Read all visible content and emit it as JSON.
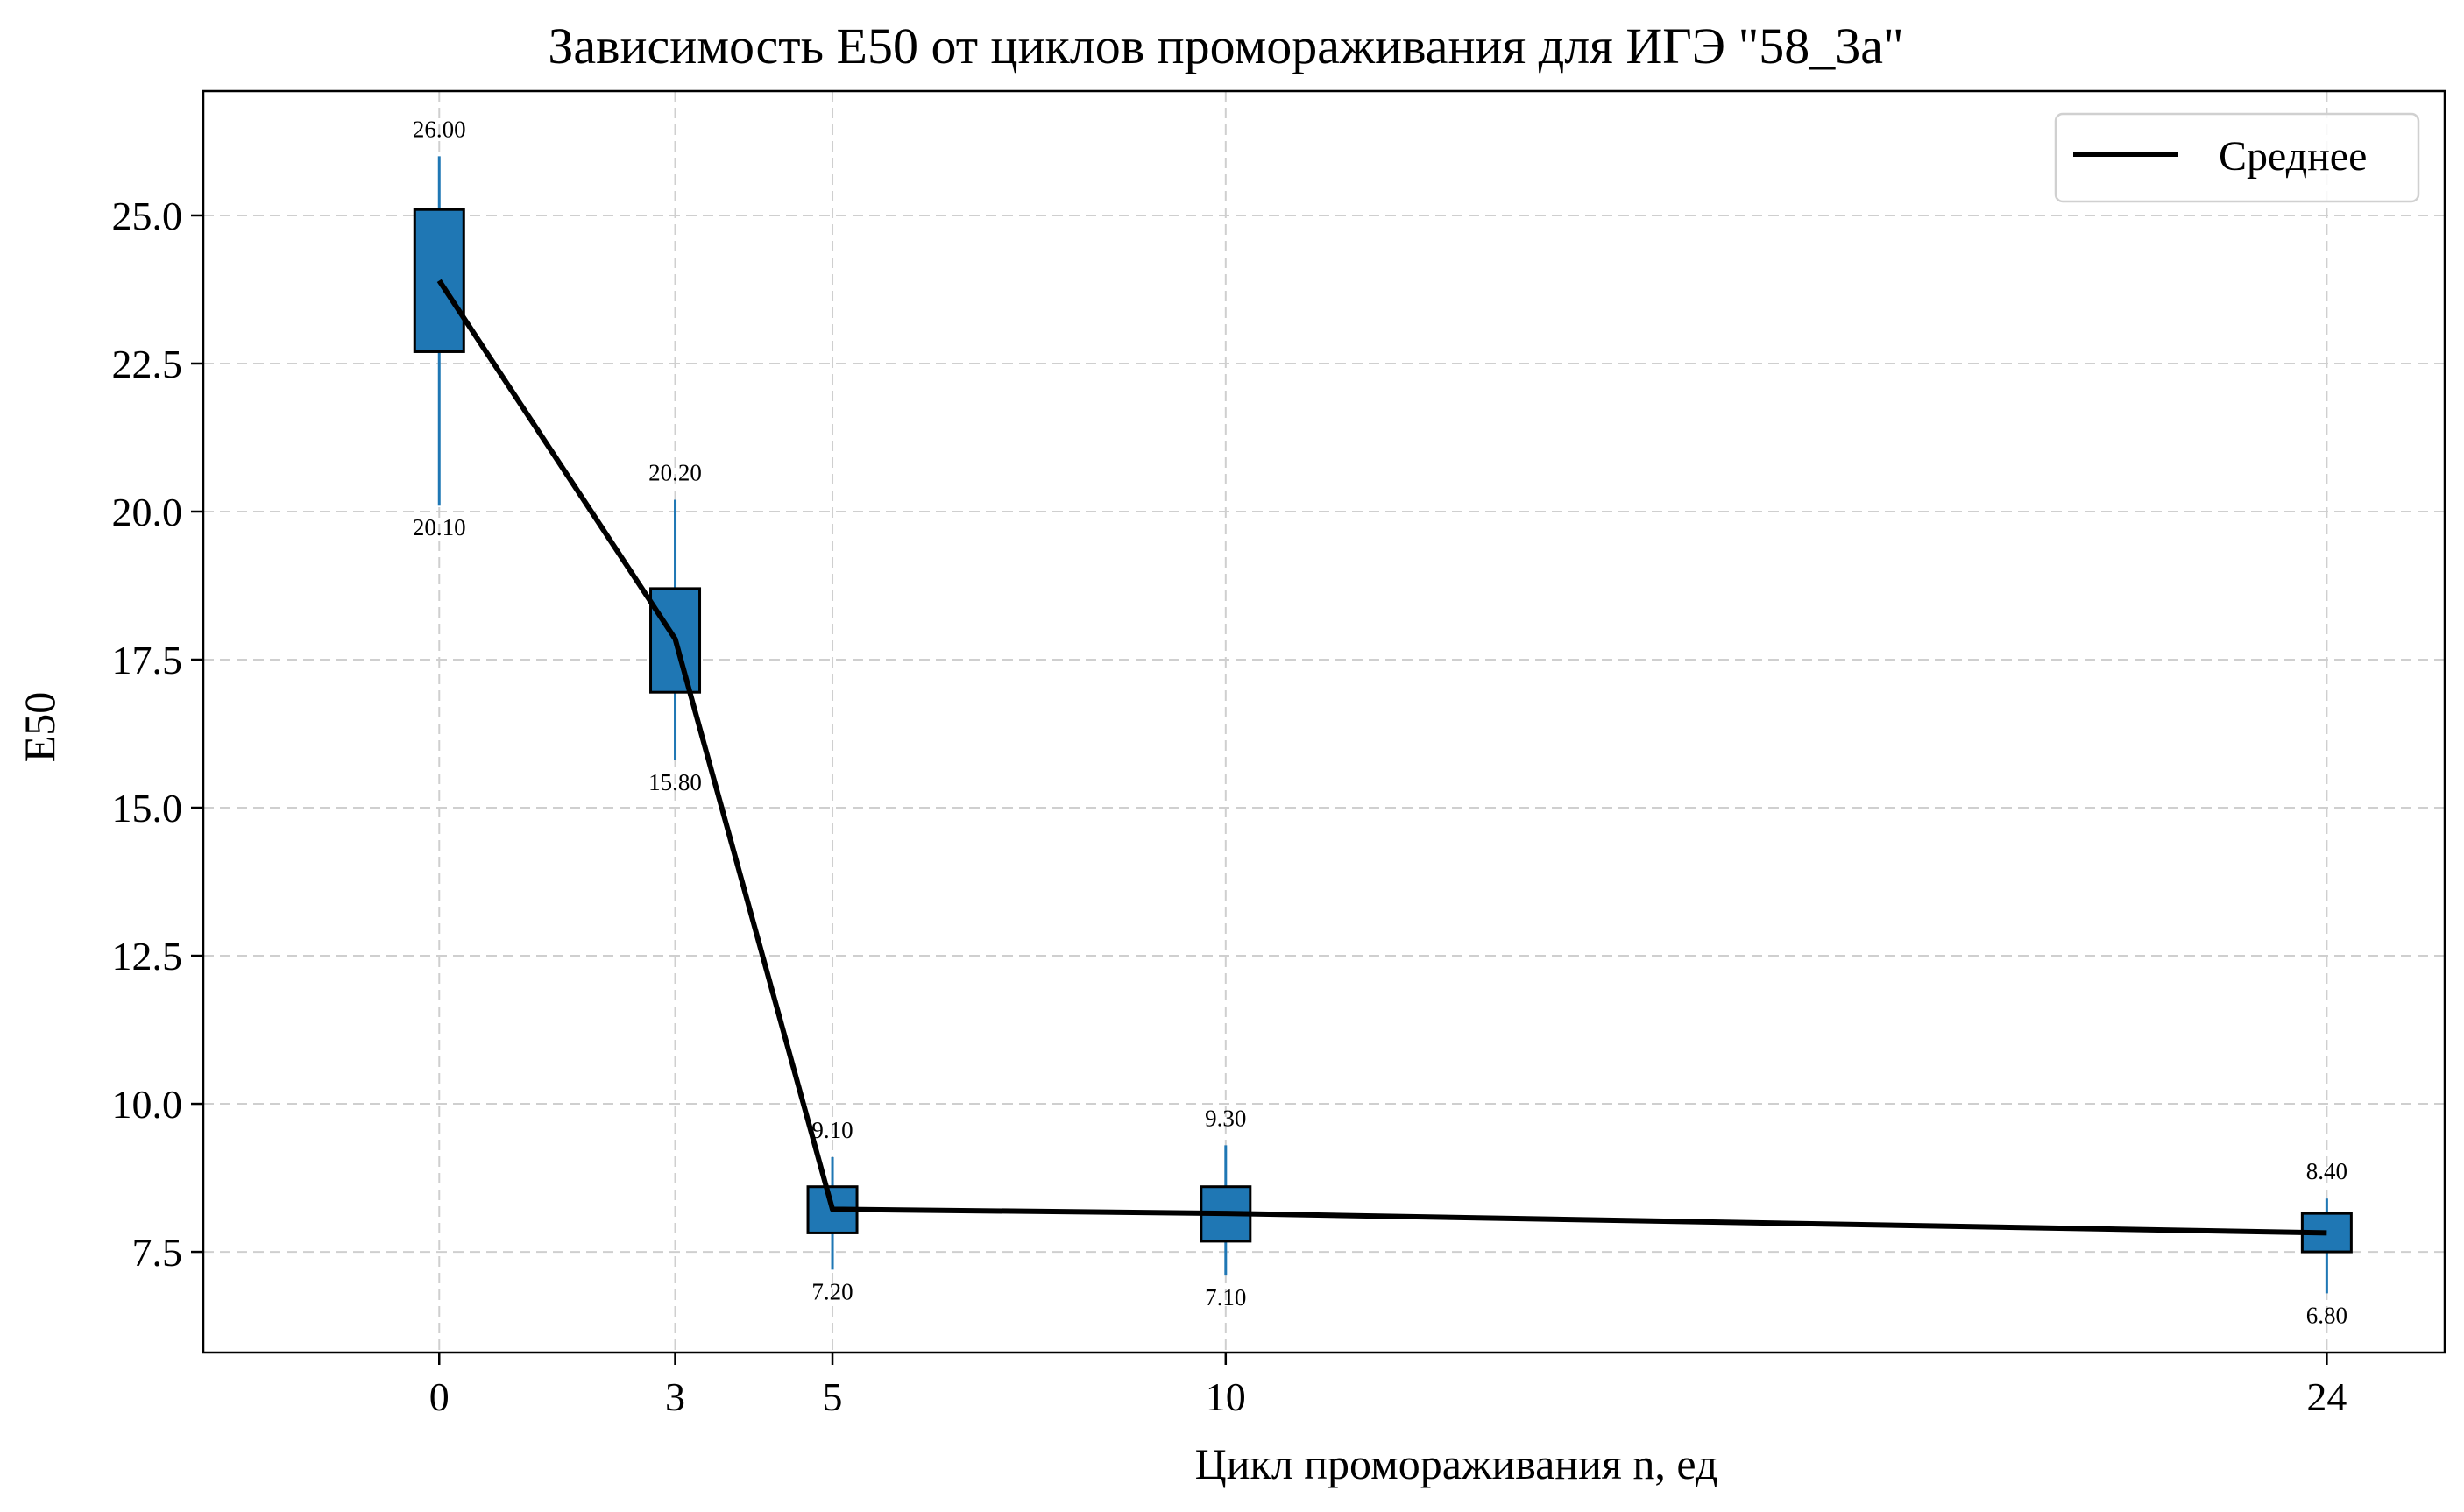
{
  "chart_data": {
    "type": "box",
    "title": "Зависимость E50 от циклов промораживания для ИГЭ \"58_3а\"",
    "xlabel": "Цикл промораживания n, ед",
    "ylabel": "E50",
    "xlim": [
      -3,
      25.5
    ],
    "ylim": [
      5.8,
      27.1
    ],
    "x_ticks": [
      0,
      3,
      5,
      10,
      24
    ],
    "x_tick_labels": [
      "0",
      "3",
      "5",
      "10",
      "24"
    ],
    "y_ticks": [
      7.5,
      10.0,
      12.5,
      15.0,
      17.5,
      20.0,
      22.5,
      25.0
    ],
    "y_tick_labels": [
      "7.5",
      "10.0",
      "12.5",
      "15.0",
      "17.5",
      "20.0",
      "22.5",
      "25.0"
    ],
    "grid": true,
    "box_color": "#1f77b4",
    "mean_color": "#000000",
    "boxes": [
      {
        "x": 0,
        "min": 20.1,
        "q1": 22.7,
        "q3": 25.1,
        "max": 26.0,
        "min_label": "20.10",
        "max_label": "26.00"
      },
      {
        "x": 3,
        "min": 15.8,
        "q1": 16.95,
        "q3": 18.7,
        "max": 20.2,
        "min_label": "15.80",
        "max_label": "20.20"
      },
      {
        "x": 5,
        "min": 7.2,
        "q1": 7.82,
        "q3": 8.6,
        "max": 9.1,
        "min_label": "7.20",
        "max_label": "9.10"
      },
      {
        "x": 10,
        "min": 7.1,
        "q1": 7.68,
        "q3": 8.6,
        "max": 9.3,
        "min_label": "7.10",
        "max_label": "9.30"
      },
      {
        "x": 24,
        "min": 6.8,
        "q1": 7.5,
        "q3": 8.15,
        "max": 8.4,
        "min_label": "6.80",
        "max_label": "8.40"
      }
    ],
    "series": [
      {
        "name": "Среднее",
        "x": [
          0,
          3,
          5,
          10,
          24
        ],
        "values": [
          23.9,
          17.85,
          8.22,
          8.15,
          7.82
        ]
      }
    ],
    "legend": {
      "position": "top-right",
      "entries": [
        "Среднее"
      ]
    }
  }
}
